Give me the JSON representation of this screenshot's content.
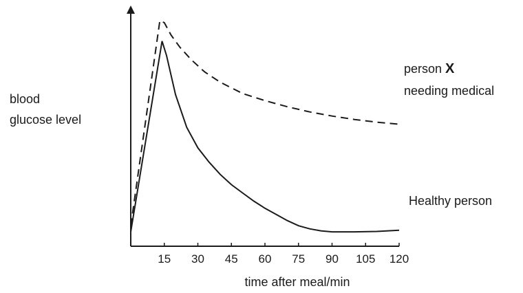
{
  "chart_data": {
    "type": "line",
    "title": "",
    "xlabel": "time after meal/min",
    "ylabel": [
      "blood",
      "glucose level"
    ],
    "xlim": [
      0,
      120
    ],
    "x_ticks": [
      15,
      30,
      45,
      60,
      75,
      90,
      105,
      120
    ],
    "y_ticks": [],
    "grid": false,
    "y_values_unitless": true,
    "series": [
      {
        "name": "Healthy person",
        "line_style": "solid",
        "points": [
          [
            0,
            0.07
          ],
          [
            14,
            1.0
          ],
          [
            16,
            0.93
          ],
          [
            20,
            0.74
          ],
          [
            25,
            0.58
          ],
          [
            30,
            0.48
          ],
          [
            35,
            0.41
          ],
          [
            40,
            0.35
          ],
          [
            45,
            0.3
          ],
          [
            50,
            0.26
          ],
          [
            55,
            0.22
          ],
          [
            60,
            0.185
          ],
          [
            65,
            0.155
          ],
          [
            70,
            0.125
          ],
          [
            75,
            0.1
          ],
          [
            80,
            0.085
          ],
          [
            85,
            0.075
          ],
          [
            90,
            0.07
          ],
          [
            100,
            0.07
          ],
          [
            110,
            0.072
          ],
          [
            120,
            0.078
          ]
        ]
      },
      {
        "name": "person X needing medical",
        "name_parts": [
          "person ",
          "X",
          "needing medical"
        ],
        "line_style": "dashed",
        "points": [
          [
            0,
            0.1
          ],
          [
            13,
            1.1
          ],
          [
            15,
            1.09
          ],
          [
            18,
            1.03
          ],
          [
            22,
            0.97
          ],
          [
            27,
            0.91
          ],
          [
            33,
            0.85
          ],
          [
            40,
            0.8
          ],
          [
            50,
            0.745
          ],
          [
            60,
            0.71
          ],
          [
            70,
            0.68
          ],
          [
            80,
            0.655
          ],
          [
            90,
            0.635
          ],
          [
            100,
            0.618
          ],
          [
            110,
            0.605
          ],
          [
            120,
            0.595
          ]
        ]
      }
    ]
  }
}
